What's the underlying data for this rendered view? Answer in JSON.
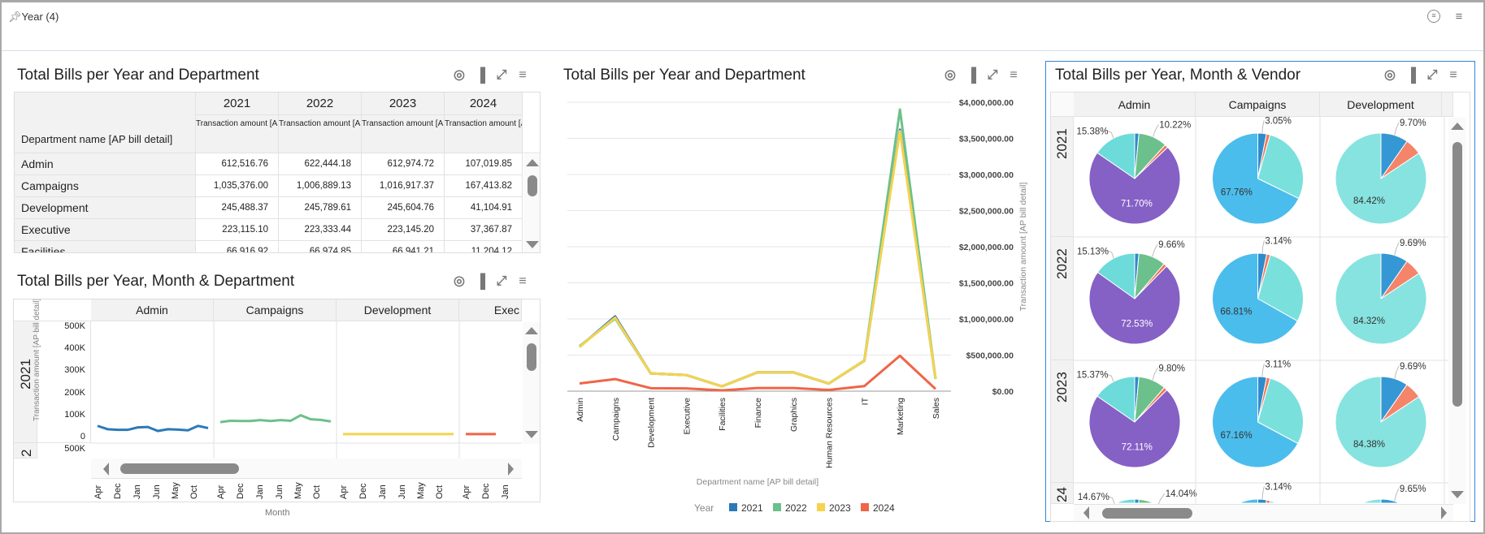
{
  "filter_bar": {
    "pin_icon": "pin-icon",
    "label": "Year (4)",
    "icons": [
      "filter-settings-icon",
      "menu-icon"
    ]
  },
  "panel_icons": [
    "target-icon",
    "bar-chart-icon",
    "expand-icon",
    "menu-icon"
  ],
  "pivot": {
    "title": "Total Bills per Year and Department",
    "row_header": "Department name [AP bill detail]",
    "years": [
      "2021",
      "2022",
      "2023",
      "2024"
    ],
    "measure": "Transaction amount [AP bill detail]",
    "rows": [
      {
        "dept": "Admin",
        "values": [
          "612,516.76",
          "622,444.18",
          "612,974.72",
          "107,019.85"
        ]
      },
      {
        "dept": "Campaigns",
        "values": [
          "1,035,376.00",
          "1,006,889.13",
          "1,016,917.37",
          "167,413.82"
        ]
      },
      {
        "dept": "Development",
        "values": [
          "245,488.37",
          "245,789.61",
          "245,604.76",
          "41,104.91"
        ]
      },
      {
        "dept": "Executive",
        "values": [
          "223,115.10",
          "223,333.44",
          "223,145.20",
          "37,367.87"
        ]
      },
      {
        "dept": "Facilities",
        "values": [
          "66,916.92",
          "66,974.85",
          "66,941.21",
          "11,204.12"
        ]
      }
    ]
  },
  "chart_data": [
    {
      "type": "line",
      "title": "Total Bills per Year, Month & Department",
      "xlabel": "Month",
      "ylabel": "Transaction amount [AP bill detail]",
      "row_facets": [
        "2021",
        "2"
      ],
      "col_facets": [
        "Admin",
        "Campaigns",
        "Development",
        "Exec"
      ],
      "y_ticks": [
        "500K",
        "400K",
        "300K",
        "200K",
        "100K",
        "0"
      ],
      "ylim": [
        0,
        500000
      ],
      "x_ticks": [
        "Apr",
        "Dec",
        "Jan",
        "Jun",
        "May",
        "Oct"
      ],
      "colors": [
        "#2a7ab9",
        "#6cc08b",
        "#f5d34f",
        "#ef6547"
      ],
      "series_2021": [
        [
          45000,
          30000,
          27000,
          27000,
          38000,
          40000,
          22000,
          30000,
          28000,
          25000,
          45000,
          35000
        ],
        [
          62000,
          68000,
          67000,
          67000,
          71000,
          67000,
          71000,
          68000,
          93000,
          75000,
          72000,
          65000
        ],
        [
          8000,
          8000,
          8000,
          8000,
          8000,
          8000,
          8000,
          8000,
          8000,
          8000,
          8000,
          8000
        ],
        [
          8000,
          8000,
          8000,
          8000
        ]
      ]
    },
    {
      "type": "line",
      "title": "Total Bills per Year and Department",
      "xlabel": "Department name [AP bill detail]",
      "ylabel": "Transaction amount [AP bill detail]",
      "categories": [
        "Admin",
        "Campaigns",
        "Development",
        "Executive",
        "Facilities",
        "Finance",
        "Graphics",
        "Human Resources",
        "IT",
        "Marketing",
        "Sales"
      ],
      "y_ticks": [
        "$4,000,000.00",
        "$3,500,000.00",
        "$3,000,000.00",
        "$2,500,000.00",
        "$2,000,000.00",
        "$1,500,000.00",
        "$1,000,000.00",
        "$500,000.00",
        "$0.00"
      ],
      "ylim": [
        0,
        4000000
      ],
      "grid": true,
      "legend_title": "Year",
      "legend_position": "bottom",
      "series": [
        {
          "name": "2021",
          "color": "#2a7ab9",
          "values": [
            612516.76,
            1035376.0,
            245488.37,
            223115.1,
            66916.92,
            260000,
            260000,
            105000,
            420000,
            3620000,
            170000
          ]
        },
        {
          "name": "2022",
          "color": "#6cc08b",
          "values": [
            622444.18,
            1006889.13,
            245789.61,
            223333.44,
            66974.85,
            262000,
            262000,
            106000,
            425000,
            3900000,
            172000
          ]
        },
        {
          "name": "2023",
          "color": "#f5d34f",
          "values": [
            612974.72,
            1016917.37,
            245604.76,
            223145.2,
            66941.21,
            261000,
            261000,
            105000,
            422000,
            3600000,
            171000
          ]
        },
        {
          "name": "2024",
          "color": "#ef6547",
          "values": [
            107019.85,
            167413.82,
            41104.91,
            37367.87,
            11204.12,
            43000,
            43000,
            17000,
            70000,
            490000,
            30000
          ]
        }
      ]
    },
    {
      "type": "pie",
      "title": "Total Bills per Year, Month & Vendor",
      "col_facets": [
        "Admin",
        "Campaigns",
        "Development"
      ],
      "row_facets": [
        "2021",
        "2022",
        "2023",
        "24"
      ],
      "pies": [
        [
          {
            "slices": [
              {
                "v": 1.5,
                "c": "#2e8bcc"
              },
              {
                "v": 10.22,
                "c": "#6cc08b",
                "label": "10.22%"
              },
              {
                "v": 1.2,
                "c": "#f0775a"
              },
              {
                "v": 71.7,
                "c": "#8560c5",
                "label": "71.70%"
              },
              {
                "v": 15.38,
                "c": "#6cdbd9",
                "label": "15.38%"
              }
            ]
          },
          {
            "slices": [
              {
                "v": 3.05,
                "c": "#2e8bcc",
                "label": "3.05%"
              },
              {
                "v": 1.3,
                "c": "#f0775a"
              },
              {
                "v": 27.89,
                "c": "#7ae0dc"
              },
              {
                "v": 67.76,
                "c": "#4bbdec",
                "label": "67.76%"
              }
            ]
          },
          {
            "slices": [
              {
                "v": 9.7,
                "c": "#3597d3",
                "label": "9.70%"
              },
              {
                "v": 5.88,
                "c": "#f4846a"
              },
              {
                "v": 84.42,
                "c": "#86e3e0",
                "label": "84.42%"
              }
            ]
          }
        ],
        [
          {
            "slices": [
              {
                "v": 1.5,
                "c": "#2e8bcc"
              },
              {
                "v": 9.66,
                "c": "#6cc08b",
                "label": "9.66%"
              },
              {
                "v": 1.18,
                "c": "#f0775a"
              },
              {
                "v": 72.53,
                "c": "#8560c5",
                "label": "72.53%"
              },
              {
                "v": 15.13,
                "c": "#6cdbd9",
                "label": "15.13%"
              }
            ]
          },
          {
            "slices": [
              {
                "v": 3.14,
                "c": "#2e8bcc",
                "label": "3.14%"
              },
              {
                "v": 1.3,
                "c": "#f0775a"
              },
              {
                "v": 28.75,
                "c": "#7ae0dc"
              },
              {
                "v": 66.81,
                "c": "#4bbdec",
                "label": "66.81%"
              }
            ]
          },
          {
            "slices": [
              {
                "v": 9.69,
                "c": "#3597d3",
                "label": "9.69%"
              },
              {
                "v": 5.99,
                "c": "#f4846a"
              },
              {
                "v": 84.32,
                "c": "#86e3e0",
                "label": "84.32%"
              }
            ]
          }
        ],
        [
          {
            "slices": [
              {
                "v": 1.5,
                "c": "#2e8bcc"
              },
              {
                "v": 9.8,
                "c": "#6cc08b",
                "label": "9.80%"
              },
              {
                "v": 1.22,
                "c": "#f0775a"
              },
              {
                "v": 72.11,
                "c": "#8560c5",
                "label": "72.11%"
              },
              {
                "v": 15.37,
                "c": "#6cdbd9",
                "label": "15.37%"
              }
            ]
          },
          {
            "slices": [
              {
                "v": 3.11,
                "c": "#2e8bcc",
                "label": "3.11%"
              },
              {
                "v": 1.3,
                "c": "#f0775a"
              },
              {
                "v": 28.43,
                "c": "#7ae0dc"
              },
              {
                "v": 67.16,
                "c": "#4bbdec",
                "label": "67.16%"
              }
            ]
          },
          {
            "slices": [
              {
                "v": 9.69,
                "c": "#3597d3",
                "label": "9.69%"
              },
              {
                "v": 5.93,
                "c": "#f4846a"
              },
              {
                "v": 84.38,
                "c": "#86e3e0",
                "label": "84.38%"
              }
            ]
          }
        ],
        [
          {
            "slices": [
              {
                "v": 1.5,
                "c": "#2e8bcc"
              },
              {
                "v": 14.04,
                "c": "#6cc08b",
                "label": "14.04%"
              },
              {
                "v": 1.2,
                "c": "#f0775a"
              },
              {
                "v": 68.59,
                "c": "#8560c5"
              },
              {
                "v": 14.67,
                "c": "#6cdbd9",
                "label": "14.67%"
              }
            ]
          },
          {
            "slices": [
              {
                "v": 3.14,
                "c": "#2e8bcc",
                "label": "3.14%"
              },
              {
                "v": 1.3,
                "c": "#f0775a"
              },
              {
                "v": 28.0,
                "c": "#7ae0dc"
              },
              {
                "v": 67.56,
                "c": "#4bbdec"
              }
            ]
          },
          {
            "slices": [
              {
                "v": 9.65,
                "c": "#3597d3",
                "label": "9.65%"
              },
              {
                "v": 6.0,
                "c": "#f4846a"
              },
              {
                "v": 84.35,
                "c": "#86e3e0"
              }
            ]
          }
        ]
      ]
    }
  ]
}
